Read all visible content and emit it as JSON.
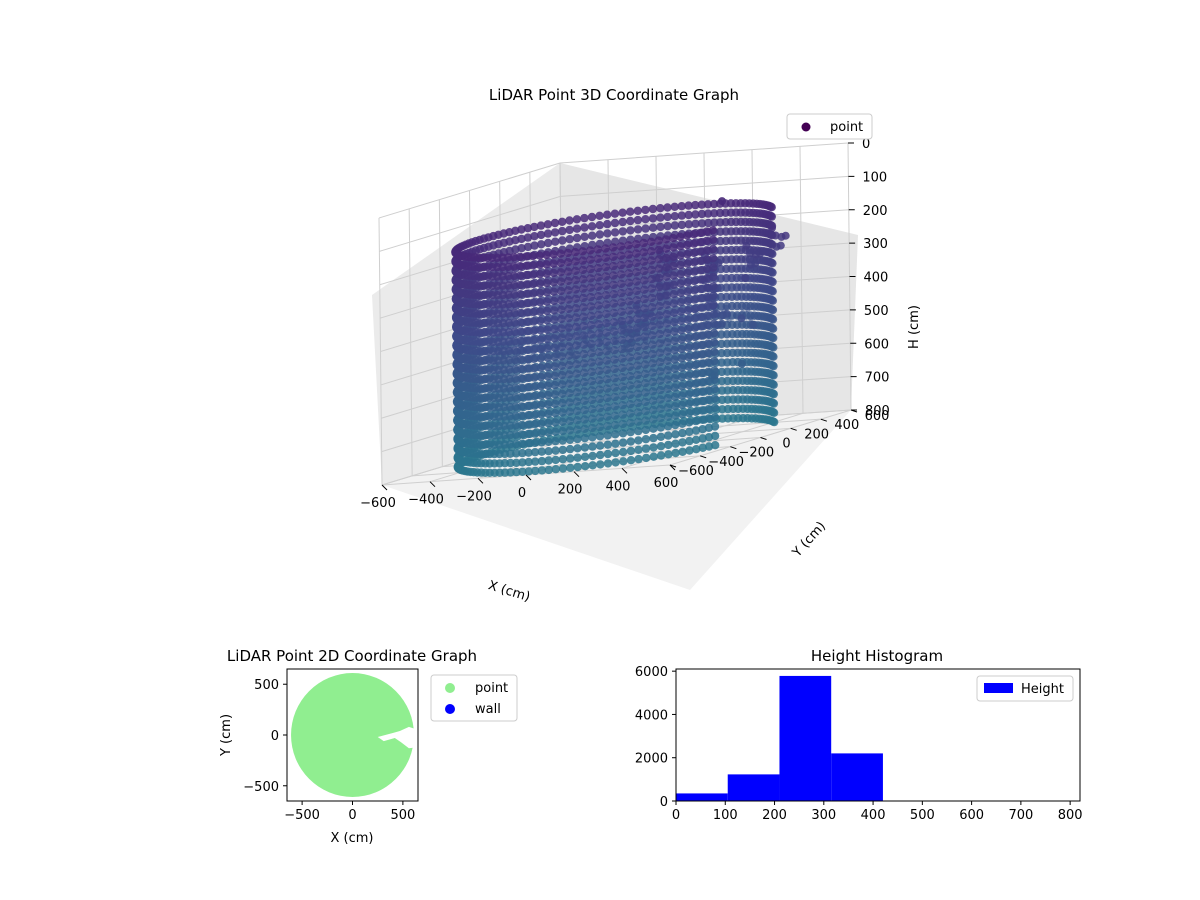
{
  "chart_data": [
    {
      "type": "scatter3d",
      "title": "LiDAR Point 3D Coordinate Graph",
      "xlabel": "X (cm)",
      "ylabel": "Y (cm)",
      "zlabel": "H (cm)",
      "xlim": [
        -600,
        600
      ],
      "ylim": [
        -600,
        600
      ],
      "zlim": [
        0,
        800
      ],
      "z_inverted": true,
      "x_ticks": [
        "−600",
        "−400",
        "−200",
        "0",
        "200",
        "400",
        "600"
      ],
      "y_ticks": [
        "600",
        "400",
        "200",
        "0",
        "−200",
        "−400",
        "−600"
      ],
      "z_ticks": [
        "0",
        "100",
        "200",
        "300",
        "400",
        "500",
        "600",
        "700",
        "800"
      ],
      "legend": [
        "point"
      ],
      "legend_position": "top-right",
      "colormap": "viridis",
      "ring": {
        "radius": 560,
        "h_min": 150,
        "h_max": 800
      },
      "floor": {
        "radius": 540,
        "h": 450
      },
      "cluster": [
        {
          "x": 420,
          "y": 450,
          "h": 250
        },
        {
          "x": 300,
          "y": 470,
          "h": 300
        },
        {
          "x": 120,
          "y": 480,
          "h": 320
        },
        {
          "x": -60,
          "y": 470,
          "h": 300
        },
        {
          "x": 30,
          "y": 300,
          "h": 360
        },
        {
          "x": 60,
          "y": 120,
          "h": 420
        },
        {
          "x": 90,
          "y": -20,
          "h": 460
        },
        {
          "x": 330,
          "y": 140,
          "h": 360
        },
        {
          "x": 480,
          "y": -40,
          "h": 420
        }
      ],
      "outliers": [
        {
          "x": 60,
          "y": 620,
          "h": 150
        },
        {
          "x": 480,
          "y": 100,
          "h": 330
        },
        {
          "x": 580,
          "y": -10,
          "h": 460
        },
        {
          "x": 640,
          "y": -180,
          "h": 420
        },
        {
          "x": 620,
          "y": -150,
          "h": 560
        },
        {
          "x": 560,
          "y": -250,
          "h": 580
        },
        {
          "x": 620,
          "y": -330,
          "h": 570
        }
      ]
    },
    {
      "type": "scatter",
      "title": "LiDAR Point 2D Coordinate Graph",
      "xlabel": "X (cm)",
      "ylabel": "Y (cm)",
      "xlim": [
        -650,
        650
      ],
      "ylim": [
        -650,
        650
      ],
      "x_ticks": [
        "−500",
        "0",
        "500"
      ],
      "y_ticks": [
        "500",
        "0",
        "−500"
      ],
      "series": [
        {
          "name": "point",
          "color": "#90ee90",
          "shape": "disk",
          "radius": 610
        },
        {
          "name": "wall",
          "color": "#0000ff",
          "points": []
        }
      ],
      "notch": [
        [
          250,
          -20
        ],
        [
          400,
          20
        ],
        [
          470,
          40
        ],
        [
          560,
          80
        ],
        [
          650,
          50
        ],
        [
          650,
          -120
        ],
        [
          560,
          -130
        ],
        [
          480,
          -70
        ],
        [
          420,
          -30
        ],
        [
          310,
          -60
        ],
        [
          250,
          -20
        ]
      ],
      "bite": [
        [
          650,
          620
        ],
        [
          580,
          400
        ],
        [
          600,
          300
        ],
        [
          650,
          200
        ]
      ],
      "legend_position": "outside-right"
    },
    {
      "type": "bar",
      "title": "Height Histogram",
      "xlim": [
        0,
        820
      ],
      "ylim": [
        0,
        6100
      ],
      "x_ticks": [
        "0",
        "100",
        "200",
        "300",
        "400",
        "500",
        "600",
        "700",
        "800"
      ],
      "y_ticks": [
        "0",
        "2000",
        "4000",
        "6000"
      ],
      "bins": [
        0,
        105,
        210,
        315,
        420
      ],
      "counts": [
        350,
        1230,
        5780,
        2200
      ],
      "series": [
        {
          "name": "Height",
          "color": "#0000ff"
        }
      ],
      "legend_position": "top-right"
    }
  ]
}
